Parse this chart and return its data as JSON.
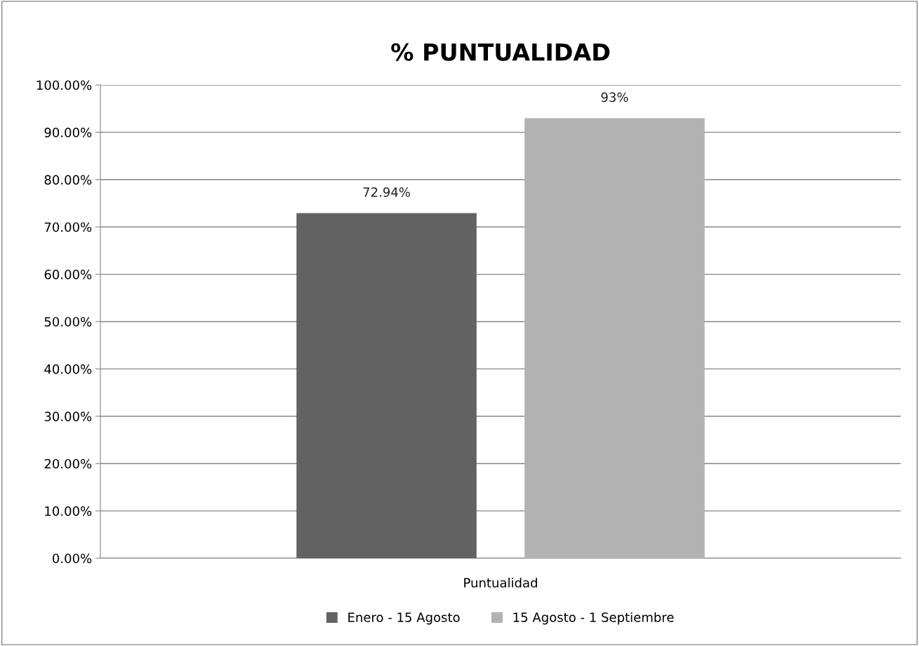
{
  "chart_data": {
    "type": "bar",
    "title": "% PUNTUALIDAD",
    "categories": [
      "Puntualidad"
    ],
    "series": [
      {
        "name": "Enero - 15 Agosto",
        "color": "#626262",
        "values": [
          72.94
        ],
        "value_labels": [
          "72.94%"
        ]
      },
      {
        "name": "15 Agosto - 1 Septiembre",
        "color": "#b2b2b2",
        "values": [
          93
        ],
        "value_labels": [
          "93%"
        ]
      }
    ],
    "ylim": [
      0,
      100
    ],
    "yticks": [
      {
        "value": 0,
        "label": "0.00%"
      },
      {
        "value": 10,
        "label": "10.00%"
      },
      {
        "value": 20,
        "label": "20.00%"
      },
      {
        "value": 30,
        "label": "30.00%"
      },
      {
        "value": 40,
        "label": "40.00%"
      },
      {
        "value": 50,
        "label": "50.00%"
      },
      {
        "value": 60,
        "label": "60.00%"
      },
      {
        "value": 70,
        "label": "70.00%"
      },
      {
        "value": 80,
        "label": "80.00%"
      },
      {
        "value": 90,
        "label": "90.00%"
      },
      {
        "value": 100,
        "label": "100.00%"
      }
    ],
    "grid": "y",
    "legend": "bottom"
  }
}
